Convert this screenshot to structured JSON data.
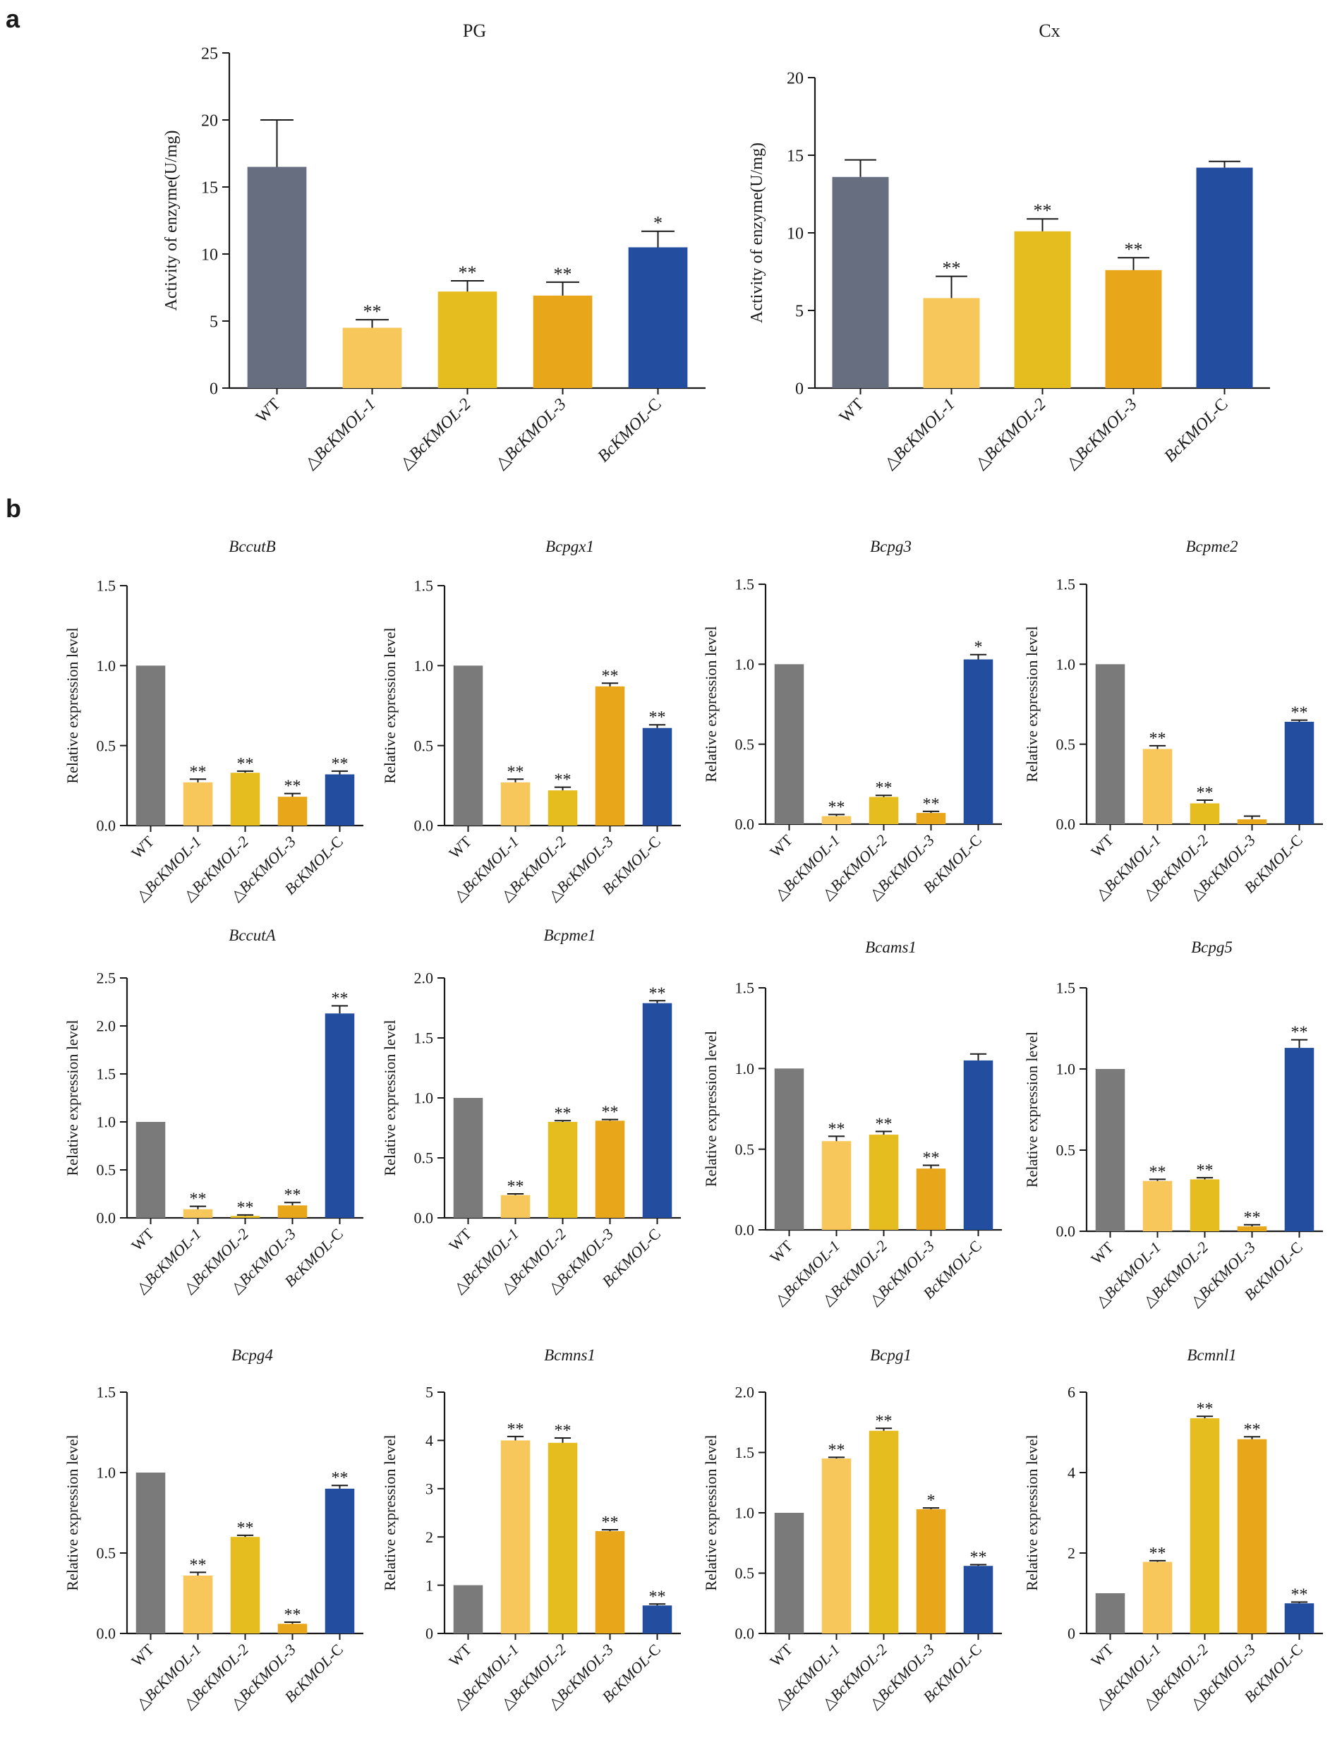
{
  "panels": {
    "a": "a",
    "b": "b"
  },
  "colors": {
    "wt_a": "#676e80",
    "wt_b": "#7a7a7a",
    "mut1": "#f7c75c",
    "mut2": "#e6bd1f",
    "mut3": "#e8a71b",
    "comp": "#234d9e"
  },
  "chart_data": [
    {
      "id": "PG",
      "type": "bar",
      "panel": "a",
      "title": "PG",
      "title_italic": false,
      "ylabel": "Activity of enzyme(U/mg)",
      "categories": [
        "WT",
        "△BcKMOL-1",
        "△BcKMOL-2",
        "△BcKMOL-3",
        "BcKMOL-C"
      ],
      "values": [
        16.5,
        4.5,
        7.2,
        6.9,
        10.5
      ],
      "errors": [
        3.5,
        0.6,
        0.8,
        1.0,
        1.2
      ],
      "significance": [
        "",
        "**",
        "**",
        "**",
        "*"
      ],
      "ylim": [
        0,
        25
      ],
      "yticks": [
        "0",
        "5",
        "10",
        "15",
        "20",
        "25"
      ]
    },
    {
      "id": "Cx",
      "type": "bar",
      "panel": "a",
      "title": "Cx",
      "title_italic": false,
      "ylabel": "Activity of enzyme(U/mg)",
      "categories": [
        "WT",
        "△BcKMOL-1",
        "△BcKMOL-2",
        "△BcKMOL-3",
        "BcKMOL-C"
      ],
      "values": [
        13.6,
        5.8,
        10.1,
        7.6,
        14.2
      ],
      "errors": [
        1.1,
        1.4,
        0.8,
        0.8,
        0.4
      ],
      "significance": [
        "",
        "**",
        "**",
        "**",
        ""
      ],
      "ylim": [
        0,
        20
      ],
      "yticks": [
        "0",
        "5",
        "10",
        "15",
        "20"
      ]
    },
    {
      "id": "BccutB",
      "type": "bar",
      "panel": "b",
      "title": "BccutB",
      "title_italic": true,
      "ylabel": "Relative expression level",
      "categories": [
        "WT",
        "△BcKMOL-1",
        "△BcKMOL-2",
        "△BcKMOL-3",
        "BcKMOL-C"
      ],
      "values": [
        1.0,
        0.27,
        0.33,
        0.18,
        0.32
      ],
      "errors": [
        0,
        0.02,
        0.01,
        0.02,
        0.02
      ],
      "significance": [
        "",
        "**",
        "**",
        "**",
        "**"
      ],
      "ylim": [
        0,
        1.5
      ],
      "yticks": [
        "0.0",
        "0.5",
        "1.0",
        "1.5"
      ]
    },
    {
      "id": "Bcpgx1",
      "type": "bar",
      "panel": "b",
      "title": "Bcpgx1",
      "title_italic": true,
      "ylabel": "Relative expression level",
      "categories": [
        "WT",
        "△BcKMOL-1",
        "△BcKMOL-2",
        "△BcKMOL-3",
        "BcKMOL-C"
      ],
      "values": [
        1.0,
        0.27,
        0.22,
        0.87,
        0.61
      ],
      "errors": [
        0,
        0.02,
        0.02,
        0.02,
        0.02
      ],
      "significance": [
        "",
        "**",
        "**",
        "**",
        "**"
      ],
      "ylim": [
        0,
        1.5
      ],
      "yticks": [
        "0.0",
        "0.5",
        "1.0",
        "1.5"
      ]
    },
    {
      "id": "Bcpg3",
      "type": "bar",
      "panel": "b",
      "title": "Bcpg3",
      "title_italic": true,
      "ylabel": "Relative expression level",
      "categories": [
        "WT",
        "△BcKMOL-1",
        "△BcKMOL-2",
        "△BcKMOL-3",
        "BcKMOL-C"
      ],
      "values": [
        1.0,
        0.05,
        0.17,
        0.07,
        1.03
      ],
      "errors": [
        0,
        0.01,
        0.01,
        0.01,
        0.03
      ],
      "significance": [
        "",
        "**",
        "**",
        "**",
        "*"
      ],
      "ylim": [
        0,
        1.5
      ],
      "yticks": [
        "0.0",
        "0.5",
        "1.0",
        "1.5"
      ]
    },
    {
      "id": "Bcpme2",
      "type": "bar",
      "panel": "b",
      "title": "Bcpme2",
      "title_italic": true,
      "ylabel": "Relative expression level",
      "categories": [
        "WT",
        "△BcKMOL-1",
        "△BcKMOL-2",
        "△BcKMOL-3",
        "BcKMOL-C"
      ],
      "values": [
        1.0,
        0.47,
        0.13,
        0.03,
        0.64
      ],
      "errors": [
        0,
        0.02,
        0.02,
        0.02,
        0.01
      ],
      "significance": [
        "",
        "**",
        "**",
        "",
        "**"
      ],
      "ylim": [
        0,
        1.5
      ],
      "yticks": [
        "0.0",
        "0.5",
        "1.0",
        "1.5"
      ]
    },
    {
      "id": "BccutA",
      "type": "bar",
      "panel": "b",
      "title": "BccutA",
      "title_italic": true,
      "ylabel": "Relative expression level",
      "categories": [
        "WT",
        "△BcKMOL-1",
        "△BcKMOL-2",
        "△BcKMOL-3",
        "BcKMOL-C"
      ],
      "values": [
        1.0,
        0.09,
        0.02,
        0.13,
        2.13
      ],
      "errors": [
        0,
        0.03,
        0.01,
        0.03,
        0.08
      ],
      "significance": [
        "",
        "**",
        "**",
        "**",
        "**"
      ],
      "ylim": [
        0,
        2.5
      ],
      "yticks": [
        "0.0",
        "0.5",
        "1.0",
        "1.5",
        "2.0",
        "2.5"
      ]
    },
    {
      "id": "Bcpme1",
      "type": "bar",
      "panel": "b",
      "title": "Bcpme1",
      "title_italic": true,
      "ylabel": "Relative expression level",
      "categories": [
        "WT",
        "△BcKMOL-1",
        "△BcKMOL-2",
        "△BcKMOL-3",
        "BcKMOL-C"
      ],
      "values": [
        1.0,
        0.19,
        0.8,
        0.81,
        1.79
      ],
      "errors": [
        0,
        0.01,
        0.01,
        0.01,
        0.02
      ],
      "significance": [
        "",
        "**",
        "**",
        "**",
        "**"
      ],
      "ylim": [
        0,
        2.0
      ],
      "yticks": [
        "0.0",
        "0.5",
        "1.0",
        "1.5",
        "2.0"
      ]
    },
    {
      "id": "Bcams1",
      "type": "bar",
      "panel": "b",
      "title": "Bcams1",
      "title_italic": true,
      "ylabel": "Relative expression level",
      "categories": [
        "WT",
        "△BcKMOL-1",
        "△BcKMOL-2",
        "△BcKMOL-3",
        "BcKMOL-C"
      ],
      "values": [
        1.0,
        0.55,
        0.59,
        0.38,
        1.05
      ],
      "errors": [
        0,
        0.03,
        0.02,
        0.02,
        0.04
      ],
      "significance": [
        "",
        "**",
        "**",
        "**",
        ""
      ],
      "ylim": [
        0,
        1.5
      ],
      "yticks": [
        "0.0",
        "0.5",
        "1.0",
        "1.5"
      ]
    },
    {
      "id": "Bcpg5",
      "type": "bar",
      "panel": "b",
      "title": "Bcpg5",
      "title_italic": true,
      "ylabel": "Relative expression level",
      "categories": [
        "WT",
        "△BcKMOL-1",
        "△BcKMOL-2",
        "△BcKMOL-3",
        "BcKMOL-C"
      ],
      "values": [
        1.0,
        0.31,
        0.32,
        0.03,
        1.13
      ],
      "errors": [
        0,
        0.01,
        0.01,
        0.01,
        0.05
      ],
      "significance": [
        "",
        "**",
        "**",
        "**",
        "**"
      ],
      "ylim": [
        0,
        1.5
      ],
      "yticks": [
        "0.0",
        "0.5",
        "1.0",
        "1.5"
      ]
    },
    {
      "id": "Bcpg4",
      "type": "bar",
      "panel": "b",
      "title": "Bcpg4",
      "title_italic": true,
      "ylabel": "Relative expression level",
      "categories": [
        "WT",
        "△BcKMOL-1",
        "△BcKMOL-2",
        "△BcKMOL-3",
        "BcKMOL-C"
      ],
      "values": [
        1.0,
        0.36,
        0.6,
        0.06,
        0.9
      ],
      "errors": [
        0,
        0.02,
        0.01,
        0.01,
        0.02
      ],
      "significance": [
        "",
        "**",
        "**",
        "**",
        "**"
      ],
      "ylim": [
        0,
        1.5
      ],
      "yticks": [
        "0.0",
        "0.5",
        "1.0",
        "1.5"
      ]
    },
    {
      "id": "Bcmns1",
      "type": "bar",
      "panel": "b",
      "title": "Bcmns1",
      "title_italic": true,
      "ylabel": "Relative expression level",
      "categories": [
        "WT",
        "△BcKMOL-1",
        "△BcKMOL-2",
        "△BcKMOL-3",
        "BcKMOL-C"
      ],
      "values": [
        1.0,
        4.0,
        3.95,
        2.12,
        0.58
      ],
      "errors": [
        0,
        0.08,
        0.1,
        0.03,
        0.03
      ],
      "significance": [
        "",
        "**",
        "**",
        "**",
        "**"
      ],
      "ylim": [
        0,
        5
      ],
      "yticks": [
        "0",
        "1",
        "2",
        "3",
        "4",
        "5"
      ]
    },
    {
      "id": "Bcpg1",
      "type": "bar",
      "panel": "b",
      "title": "Bcpg1",
      "title_italic": true,
      "ylabel": "Relative expression level",
      "categories": [
        "WT",
        "△BcKMOL-1",
        "△BcKMOL-2",
        "△BcKMOL-3",
        "BcKMOL-C"
      ],
      "values": [
        1.0,
        1.45,
        1.68,
        1.03,
        0.56
      ],
      "errors": [
        0,
        0.01,
        0.02,
        0.01,
        0.01
      ],
      "significance": [
        "",
        "**",
        "**",
        "*",
        "**"
      ],
      "ylim": [
        0,
        2.0
      ],
      "yticks": [
        "0.0",
        "0.5",
        "1.0",
        "1.5",
        "2.0"
      ]
    },
    {
      "id": "Bcmnl1",
      "type": "bar",
      "panel": "b",
      "title": "Bcmnl1",
      "title_italic": true,
      "ylabel": "Relative expression level",
      "categories": [
        "WT",
        "△BcKMOL-1",
        "△BcKMOL-2",
        "△BcKMOL-3",
        "BcKMOL-C"
      ],
      "values": [
        1.0,
        1.78,
        5.35,
        4.83,
        0.75
      ],
      "errors": [
        0,
        0.03,
        0.05,
        0.06,
        0.03
      ],
      "significance": [
        "",
        "**",
        "**",
        "**",
        "**"
      ],
      "ylim": [
        0,
        6
      ],
      "yticks": [
        "0",
        "2",
        "4",
        "6"
      ]
    }
  ]
}
